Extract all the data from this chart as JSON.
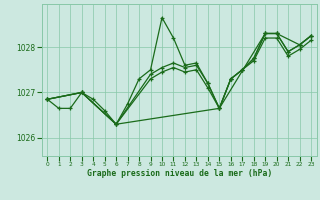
{
  "title": "Graphe pression niveau de la mer (hPa)",
  "xlim": [
    -0.5,
    23.5
  ],
  "ylim": [
    1025.6,
    1028.95
  ],
  "yticks": [
    1026,
    1027,
    1028
  ],
  "xticks": [
    0,
    1,
    2,
    3,
    4,
    5,
    6,
    7,
    8,
    9,
    10,
    11,
    12,
    13,
    14,
    15,
    16,
    17,
    18,
    19,
    20,
    21,
    22,
    23
  ],
  "bg_color": "#cce8e0",
  "grid_color": "#88c8a8",
  "line_color": "#1a6b1a",
  "line1": {
    "x": [
      0,
      1,
      2,
      3,
      4,
      5,
      6,
      7,
      8,
      9,
      10,
      11,
      12,
      13,
      14,
      15,
      16,
      17,
      18,
      19,
      20,
      21,
      22,
      23
    ],
    "y": [
      1026.85,
      1026.65,
      1026.65,
      1027.0,
      1026.85,
      1026.6,
      1026.3,
      1026.75,
      1027.3,
      1027.5,
      1028.65,
      1028.2,
      1027.6,
      1027.65,
      1027.2,
      1026.65,
      1027.3,
      1027.5,
      1027.75,
      1028.3,
      1028.3,
      1027.9,
      1028.05,
      1028.25
    ]
  },
  "line2": {
    "x": [
      0,
      3,
      6,
      15,
      19,
      20,
      22,
      23
    ],
    "y": [
      1026.85,
      1027.0,
      1026.3,
      1026.65,
      1028.3,
      1028.3,
      1028.05,
      1028.25
    ]
  },
  "line3": {
    "x": [
      0,
      3,
      6,
      9,
      10,
      11,
      12,
      13,
      14,
      15,
      16,
      17,
      18,
      19,
      20,
      21,
      22,
      23
    ],
    "y": [
      1026.85,
      1027.0,
      1026.3,
      1027.4,
      1027.55,
      1027.65,
      1027.55,
      1027.6,
      1027.2,
      1026.65,
      1027.3,
      1027.5,
      1027.75,
      1028.3,
      1028.3,
      1027.9,
      1028.05,
      1028.25
    ]
  },
  "line4": {
    "x": [
      0,
      3,
      6,
      9,
      10,
      11,
      12,
      13,
      14,
      15,
      16,
      17,
      18,
      19,
      20,
      21,
      22,
      23
    ],
    "y": [
      1026.85,
      1027.0,
      1026.3,
      1027.3,
      1027.45,
      1027.55,
      1027.45,
      1027.5,
      1027.1,
      1026.65,
      1027.3,
      1027.5,
      1027.7,
      1028.2,
      1028.2,
      1027.8,
      1027.95,
      1028.15
    ]
  }
}
